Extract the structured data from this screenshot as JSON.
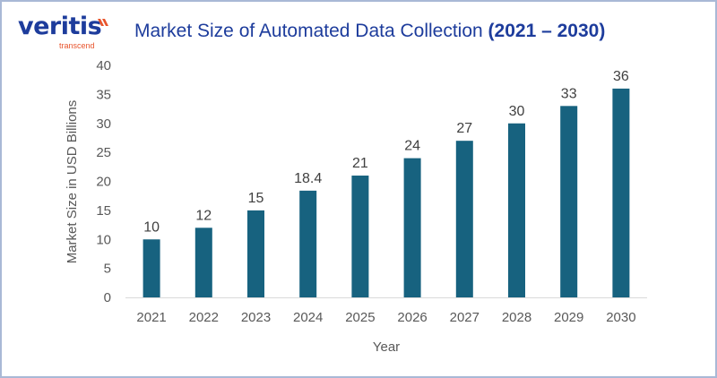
{
  "logo": {
    "word": "veritis",
    "sub": "transcend"
  },
  "chart_data": {
    "type": "bar",
    "title": "Market Size of Automated Data Collection",
    "title_years": "(2021 – 2030)",
    "xlabel": "Year",
    "ylabel": "Market Size in USD Billions",
    "categories": [
      "2021",
      "2022",
      "2023",
      "2024",
      "2025",
      "2026",
      "2027",
      "2028",
      "2029",
      "2030"
    ],
    "values": [
      10,
      12,
      15,
      18.4,
      21,
      24,
      27,
      30,
      33,
      36
    ],
    "ylim": [
      0,
      40
    ],
    "yticks": [
      0,
      5,
      10,
      15,
      20,
      25,
      30,
      35,
      40
    ],
    "grid": false,
    "bar_color": "#17627f",
    "data_labels": true
  }
}
